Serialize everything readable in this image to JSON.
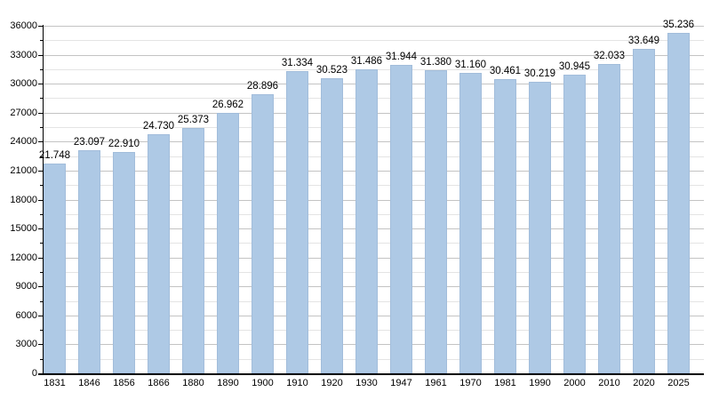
{
  "chart_data": {
    "type": "bar",
    "title": "",
    "xlabel": "",
    "ylabel": "",
    "legend": "none",
    "categories": [
      "1831",
      "1846",
      "1856",
      "1866",
      "1880",
      "1890",
      "1900",
      "1910",
      "1920",
      "1930",
      "1947",
      "1961",
      "1970",
      "1981",
      "1990",
      "2000",
      "2010",
      "2020",
      "2025"
    ],
    "values": [
      21748,
      23097,
      22910,
      24730,
      25373,
      26962,
      28896,
      31334,
      30523,
      31486,
      31944,
      31380,
      31160,
      30461,
      30219,
      30945,
      32033,
      33649,
      35236
    ],
    "value_labels": [
      "21.748",
      "23.097",
      "22.910",
      "24.730",
      "25.373",
      "26.962",
      "28.896",
      "31.334",
      "30.523",
      "31.486",
      "31.944",
      "31.380",
      "31.160",
      "30.461",
      "30.219",
      "30.945",
      "32.033",
      "33.649",
      "35.236"
    ],
    "y_axis": {
      "min": 0,
      "max": 36000,
      "major_step": 3000,
      "minor_step": 1500,
      "tick_labels": [
        "0",
        "3000",
        "6000",
        "9000",
        "12000",
        "15000",
        "18000",
        "21000",
        "24000",
        "27000",
        "30000",
        "33000",
        "36000"
      ]
    },
    "grid": {
      "major": true,
      "minor": true
    },
    "colors": {
      "bar_fill": "#aec9e5",
      "bar_border": "#a2bddb",
      "grid_major": "#c3c3c3",
      "grid_minor": "#e4e4e4",
      "axis": "#000000",
      "text": "#000000",
      "background": "#ffffff"
    }
  }
}
